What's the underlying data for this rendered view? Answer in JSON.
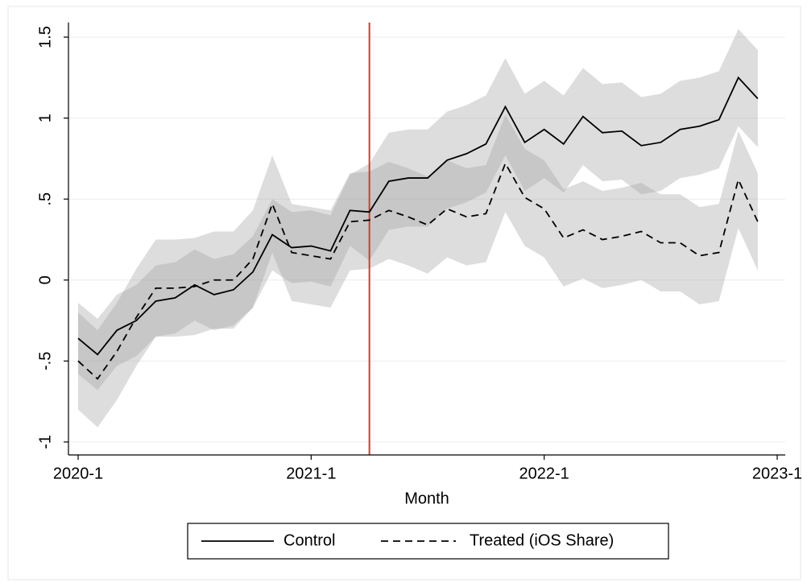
{
  "chart_data": {
    "type": "line",
    "x_label": "Month",
    "x": [
      "2020-1",
      "2020-2",
      "2020-3",
      "2020-4",
      "2020-5",
      "2020-6",
      "2020-7",
      "2020-8",
      "2020-9",
      "2020-10",
      "2020-11",
      "2020-12",
      "2021-1",
      "2021-2",
      "2021-3",
      "2021-4",
      "2021-5",
      "2021-6",
      "2021-7",
      "2021-8",
      "2021-9",
      "2021-10",
      "2021-11",
      "2021-12",
      "2022-1",
      "2022-2",
      "2022-3",
      "2022-4",
      "2022-5",
      "2022-6",
      "2022-7",
      "2022-8",
      "2022-9",
      "2022-10",
      "2022-11",
      "2022-12"
    ],
    "xlim": [
      "2020-1",
      "2023-1"
    ],
    "xticks": [
      "2020-1",
      "2021-1",
      "2022-1",
      "2023-1"
    ],
    "ylim": [
      -1.08,
      1.59
    ],
    "yticks": [
      -1,
      {
        "value": -0.5,
        "label": "-.5"
      },
      0,
      {
        "value": 0.5,
        "label": ".5"
      },
      1,
      1.5
    ],
    "grid": true,
    "vline": {
      "x": "2021-4",
      "color": "#c8412f"
    },
    "band_color": "#9e9e9e",
    "series": [
      {
        "name": "Control",
        "color": "#000000",
        "dash": "solid",
        "values": [
          -0.36,
          -0.46,
          -0.31,
          -0.25,
          -0.13,
          -0.11,
          -0.03,
          -0.09,
          -0.06,
          0.05,
          0.28,
          0.2,
          0.21,
          0.18,
          0.43,
          0.42,
          0.61,
          0.63,
          0.63,
          0.74,
          0.78,
          0.84,
          1.07,
          0.85,
          0.93,
          0.84,
          1.01,
          0.91,
          0.92,
          0.83,
          0.85,
          0.93,
          0.95,
          0.99,
          1.25,
          1.12
        ],
        "lower": [
          -0.58,
          -0.68,
          -0.53,
          -0.47,
          -0.35,
          -0.33,
          -0.25,
          -0.31,
          -0.28,
          -0.17,
          0.06,
          -0.02,
          -0.01,
          -0.04,
          0.21,
          0.12,
          0.31,
          0.33,
          0.33,
          0.44,
          0.48,
          0.54,
          0.77,
          0.55,
          0.63,
          0.54,
          0.71,
          0.61,
          0.62,
          0.53,
          0.55,
          0.63,
          0.65,
          0.69,
          0.95,
          0.82
        ],
        "upper": [
          -0.14,
          -0.24,
          -0.09,
          -0.03,
          0.09,
          0.11,
          0.19,
          0.13,
          0.16,
          0.27,
          0.5,
          0.42,
          0.43,
          0.4,
          0.65,
          0.72,
          0.91,
          0.93,
          0.93,
          1.04,
          1.08,
          1.14,
          1.37,
          1.15,
          1.23,
          1.14,
          1.31,
          1.21,
          1.22,
          1.13,
          1.15,
          1.23,
          1.25,
          1.29,
          1.55,
          1.42
        ]
      },
      {
        "name": "Treated (iOS Share)",
        "color": "#000000",
        "dash": "dashed",
        "values": [
          -0.5,
          -0.61,
          -0.44,
          -0.23,
          -0.05,
          -0.05,
          -0.04,
          0,
          0,
          0.13,
          0.47,
          0.17,
          0.15,
          0.13,
          0.36,
          0.37,
          0.43,
          0.39,
          0.34,
          0.44,
          0.39,
          0.41,
          0.72,
          0.51,
          0.44,
          0.26,
          0.31,
          0.25,
          0.27,
          0.3,
          0.23,
          0.23,
          0.15,
          0.17,
          0.62,
          0.36
        ],
        "lower": [
          -0.8,
          -0.91,
          -0.74,
          -0.53,
          -0.35,
          -0.35,
          -0.34,
          -0.3,
          -0.3,
          -0.17,
          0.17,
          -0.13,
          -0.15,
          -0.17,
          0.06,
          0.07,
          0.13,
          0.09,
          0.04,
          0.14,
          0.09,
          0.11,
          0.42,
          0.21,
          0.14,
          -0.04,
          0.01,
          -0.05,
          -0.03,
          0,
          -0.07,
          -0.07,
          -0.15,
          -0.13,
          0.32,
          0.06
        ],
        "upper": [
          -0.2,
          -0.31,
          -0.14,
          0.07,
          0.25,
          0.25,
          0.26,
          0.3,
          0.3,
          0.43,
          0.77,
          0.47,
          0.45,
          0.43,
          0.66,
          0.67,
          0.73,
          0.69,
          0.64,
          0.74,
          0.69,
          0.71,
          1.02,
          0.81,
          0.74,
          0.56,
          0.61,
          0.55,
          0.57,
          0.6,
          0.53,
          0.53,
          0.45,
          0.47,
          0.92,
          0.66
        ]
      }
    ]
  }
}
